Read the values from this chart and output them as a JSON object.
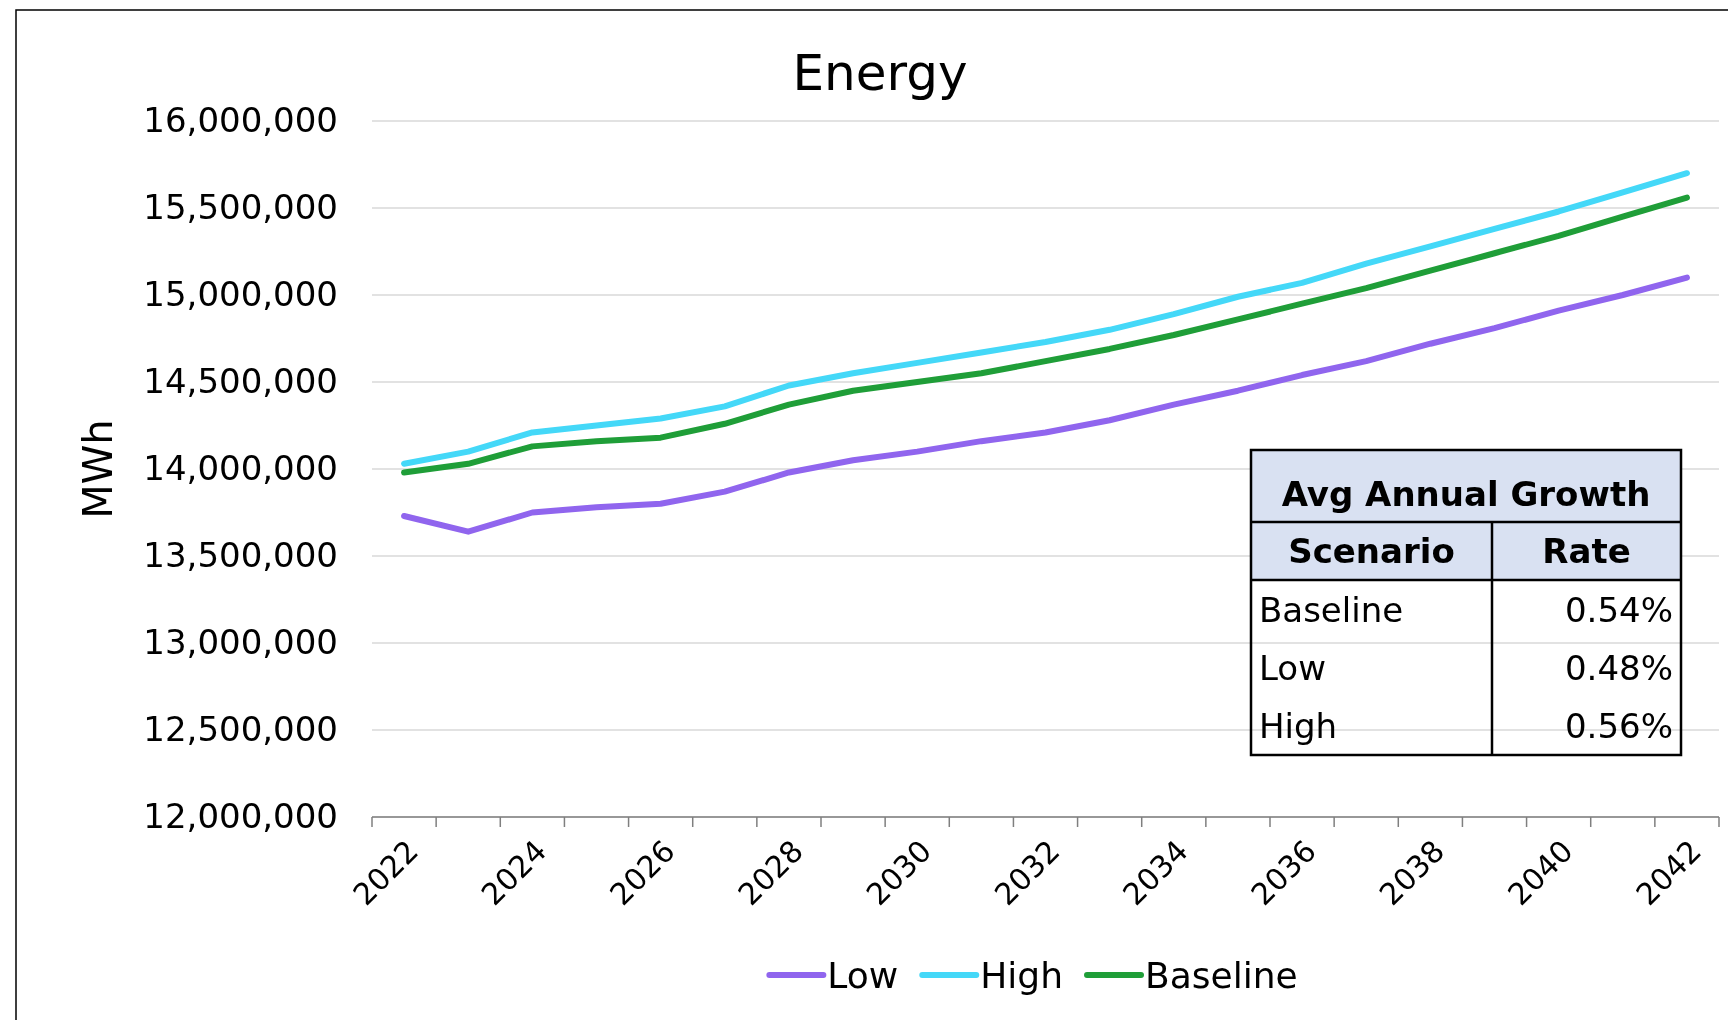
{
  "chart_data": {
    "type": "line",
    "title": "Energy",
    "ylabel": "MWh",
    "categories": [
      "2022",
      null,
      "2024",
      null,
      "2026",
      null,
      "2028",
      null,
      "2030",
      null,
      "2032",
      null,
      "2034",
      null,
      "2036",
      null,
      "2038",
      null,
      "2040",
      null,
      "2042"
    ],
    "series": [
      {
        "name": "Low",
        "color": "#9065ee",
        "values": [
          13730000,
          13640000,
          13750000,
          13780000,
          13800000,
          13870000,
          13980000,
          14050000,
          14100000,
          14160000,
          14210000,
          14280000,
          14370000,
          14450000,
          14540000,
          14620000,
          14720000,
          14810000,
          14910000,
          15000000,
          15100000
        ]
      },
      {
        "name": "High",
        "color": "#44d8f8",
        "values": [
          14030000,
          14100000,
          14210000,
          14250000,
          14290000,
          14360000,
          14480000,
          14550000,
          14610000,
          14670000,
          14730000,
          14800000,
          14890000,
          14990000,
          15070000,
          15180000,
          15280000,
          15380000,
          15480000,
          15590000,
          15700000
        ]
      },
      {
        "name": "Baseline",
        "color": "#1f9e38",
        "values": [
          13980000,
          14030000,
          14130000,
          14160000,
          14180000,
          14260000,
          14370000,
          14450000,
          14500000,
          14550000,
          14620000,
          14690000,
          14770000,
          14860000,
          14950000,
          15040000,
          15140000,
          15240000,
          15340000,
          15450000,
          15560000
        ]
      }
    ],
    "ylim": [
      12000000,
      16000000
    ],
    "yticks": [
      {
        "value": 12000000,
        "label": "12,000,000"
      },
      {
        "value": 12500000,
        "label": "12,500,000"
      },
      {
        "value": 13000000,
        "label": "13,000,000"
      },
      {
        "value": 13500000,
        "label": "13,500,000"
      },
      {
        "value": 14000000,
        "label": "14,000,000"
      },
      {
        "value": 14500000,
        "label": "14,500,000"
      },
      {
        "value": 15000000,
        "label": "15,000,000"
      },
      {
        "value": 15500000,
        "label": "15,500,000"
      },
      {
        "value": 16000000,
        "label": "16,000,000"
      }
    ],
    "grid": "y",
    "legend": "bottom",
    "marker": "none",
    "line_style": "solid",
    "annotations": [
      "Avg Annual Growth",
      "Scenario",
      "Rate",
      "Baseline",
      "0.54%",
      "Low",
      "0.48%",
      "High",
      "0.56%"
    ]
  }
}
